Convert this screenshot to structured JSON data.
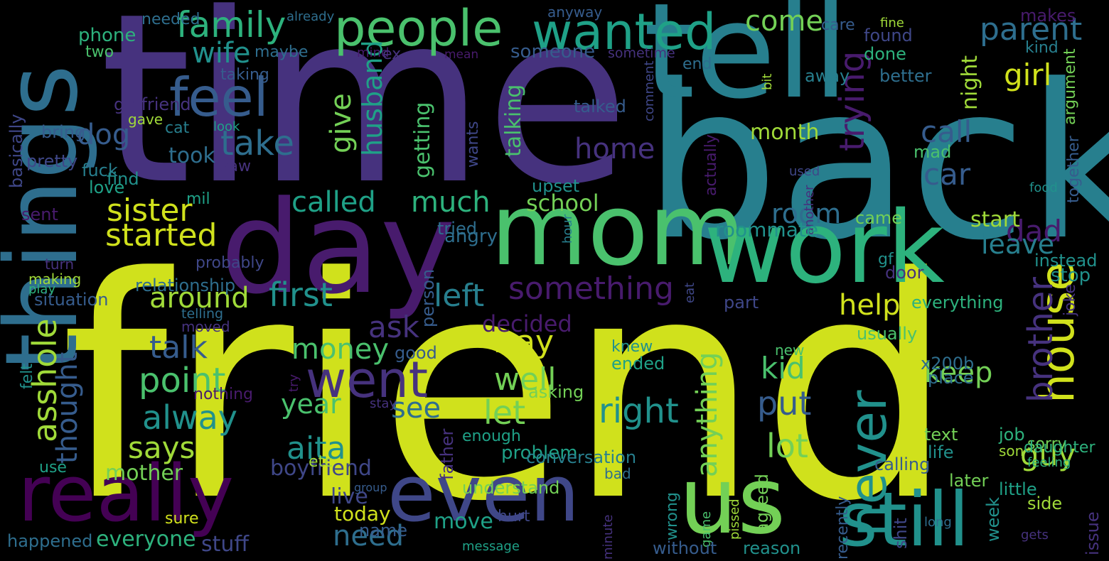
{
  "background": "#000000",
  "palette": {
    "p1": "#440154",
    "p2": "#481b6d",
    "p3": "#46327e",
    "p4": "#3f4788",
    "p5": "#365c8d",
    "p6": "#2e6e8e",
    "p7": "#277f8e",
    "p8": "#21918c",
    "p9": "#1fa187",
    "p10": "#2db27d",
    "p11": "#4ac16d",
    "p12": "#73d056",
    "p13": "#a0da39",
    "p14": "#d0e11c"
  },
  "words": [
    {
      "text": "friend",
      "color": "p14"
    },
    {
      "text": "time",
      "color": "p3"
    },
    {
      "text": "back",
      "color": "p7"
    },
    {
      "text": "tell",
      "color": "p7"
    },
    {
      "text": "day",
      "color": "p2"
    },
    {
      "text": "mom",
      "color": "p11"
    },
    {
      "text": "work",
      "color": "p10"
    },
    {
      "text": "things",
      "color": "p6"
    },
    {
      "text": "people",
      "color": "p11"
    },
    {
      "text": "wanted",
      "color": "p9"
    },
    {
      "text": "really",
      "color": "p1"
    },
    {
      "text": "even",
      "color": "p4"
    },
    {
      "text": "us",
      "color": "p12"
    },
    {
      "text": "still",
      "color": "p8"
    },
    {
      "text": "feel",
      "color": "p5"
    },
    {
      "text": "never",
      "color": "p8"
    },
    {
      "text": "house",
      "color": "p14"
    },
    {
      "text": "went",
      "color": "p3"
    },
    {
      "text": "family",
      "color": "p10"
    },
    {
      "text": "wife",
      "color": "p8"
    },
    {
      "text": "dog",
      "color": "p5"
    },
    {
      "text": "take",
      "color": "p6"
    },
    {
      "text": "sister",
      "color": "p14"
    },
    {
      "text": "started",
      "color": "p14"
    },
    {
      "text": "called",
      "color": "p9"
    },
    {
      "text": "much",
      "color": "p10"
    },
    {
      "text": "school",
      "color": "p12"
    },
    {
      "text": "room",
      "color": "p6"
    },
    {
      "text": "dad",
      "color": "p2"
    },
    {
      "text": "leave",
      "color": "p7"
    },
    {
      "text": "parent",
      "color": "p6"
    },
    {
      "text": "girl",
      "color": "p14"
    },
    {
      "text": "call",
      "color": "p5"
    },
    {
      "text": "car",
      "color": "p5"
    },
    {
      "text": "come",
      "color": "p12"
    },
    {
      "text": "home",
      "color": "p3"
    },
    {
      "text": "husband",
      "color": "p9"
    },
    {
      "text": "give",
      "color": "p12"
    },
    {
      "text": "trying",
      "color": "p2"
    },
    {
      "text": "around",
      "color": "p13"
    },
    {
      "text": "first",
      "color": "p8"
    },
    {
      "text": "something",
      "color": "p2"
    },
    {
      "text": "left",
      "color": "p7"
    },
    {
      "text": "help",
      "color": "p14"
    },
    {
      "text": "ask",
      "color": "p3"
    },
    {
      "text": "way",
      "color": "p14"
    },
    {
      "text": "talk",
      "color": "p5"
    },
    {
      "text": "point",
      "color": "p11"
    },
    {
      "text": "money",
      "color": "p11"
    },
    {
      "text": "asshole",
      "color": "p13"
    },
    {
      "text": "thought",
      "color": "p5"
    },
    {
      "text": "alway",
      "color": "p8"
    },
    {
      "text": "says",
      "color": "p13"
    },
    {
      "text": "anything",
      "color": "p12"
    },
    {
      "text": "kid",
      "color": "p11"
    },
    {
      "text": "well",
      "color": "p12"
    },
    {
      "text": "keep",
      "color": "p12"
    },
    {
      "text": "right",
      "color": "p8"
    },
    {
      "text": "put",
      "color": "p5"
    },
    {
      "text": "lot",
      "color": "p12"
    },
    {
      "text": "let",
      "color": "p12"
    },
    {
      "text": "see",
      "color": "p6"
    },
    {
      "text": "year",
      "color": "p11"
    },
    {
      "text": "aita",
      "color": "p8"
    },
    {
      "text": "brother",
      "color": "p3"
    },
    {
      "text": "guy",
      "color": "p13"
    },
    {
      "text": "need",
      "color": "p6"
    },
    {
      "text": "everyone",
      "color": "p10"
    },
    {
      "text": "stuff",
      "color": "p4"
    },
    {
      "text": "boyfriend",
      "color": "p4"
    },
    {
      "text": "mother",
      "color": "p12"
    },
    {
      "text": "live",
      "color": "p4"
    },
    {
      "text": "today",
      "color": "p14"
    },
    {
      "text": "move",
      "color": "p9"
    },
    {
      "text": "decided",
      "color": "p2"
    },
    {
      "text": "month",
      "color": "p13"
    },
    {
      "text": "took",
      "color": "p6"
    },
    {
      "text": "talking",
      "color": "p11"
    },
    {
      "text": "getting",
      "color": "p11"
    },
    {
      "text": "night",
      "color": "p13"
    },
    {
      "text": "someone",
      "color": "p5"
    },
    {
      "text": "phone",
      "color": "p10"
    },
    {
      "text": "needed",
      "color": "p6"
    },
    {
      "text": "two",
      "color": "p11"
    },
    {
      "text": "maybe",
      "color": "p6"
    },
    {
      "text": "anyway",
      "color": "p5"
    },
    {
      "text": "care",
      "color": "p5"
    },
    {
      "text": "fine",
      "color": "p13"
    },
    {
      "text": "makes",
      "color": "p2"
    },
    {
      "text": "found",
      "color": "p4"
    },
    {
      "text": "done",
      "color": "p10"
    },
    {
      "text": "kind",
      "color": "p7"
    },
    {
      "text": "already",
      "color": "p6"
    },
    {
      "text": "mind",
      "color": "p2"
    },
    {
      "text": "ex",
      "color": "p3"
    },
    {
      "text": "mean",
      "color": "p2"
    },
    {
      "text": "sometime",
      "color": "p3"
    },
    {
      "text": "taking",
      "color": "p5"
    },
    {
      "text": "end",
      "color": "p6"
    },
    {
      "text": "away",
      "color": "p7"
    },
    {
      "text": "better",
      "color": "p6"
    },
    {
      "text": "bit",
      "color": "p13"
    },
    {
      "text": "comment",
      "color": "p4"
    },
    {
      "text": "argument",
      "color": "p12"
    },
    {
      "text": "basically",
      "color": "p4"
    },
    {
      "text": "girlfriend",
      "color": "p3"
    },
    {
      "text": "gave",
      "color": "p13"
    },
    {
      "text": "bring",
      "color": "p5"
    },
    {
      "text": "cat",
      "color": "p7"
    },
    {
      "text": "look",
      "color": "p9"
    },
    {
      "text": "talked",
      "color": "p5"
    },
    {
      "text": "mad",
      "color": "p11"
    },
    {
      "text": "together",
      "color": "p5"
    },
    {
      "text": "pretty",
      "color": "p4"
    },
    {
      "text": "find",
      "color": "p8"
    },
    {
      "text": "saw",
      "color": "p3"
    },
    {
      "text": "wants",
      "color": "p4"
    },
    {
      "text": "actually",
      "color": "p2"
    },
    {
      "text": "used",
      "color": "p4"
    },
    {
      "text": "fuck",
      "color": "p7"
    },
    {
      "text": "love",
      "color": "p9"
    },
    {
      "text": "upset",
      "color": "p8"
    },
    {
      "text": "food",
      "color": "p8"
    },
    {
      "text": "mil",
      "color": "p9"
    },
    {
      "text": "another",
      "color": "p3"
    },
    {
      "text": "sent",
      "color": "p2"
    },
    {
      "text": "roommate",
      "color": "p8"
    },
    {
      "text": "came",
      "color": "p12"
    },
    {
      "text": "start",
      "color": "p13"
    },
    {
      "text": "tried",
      "color": "p6"
    },
    {
      "text": "angry",
      "color": "p6"
    },
    {
      "text": "hour",
      "color": "p7"
    },
    {
      "text": "turn",
      "color": "p3"
    },
    {
      "text": "probably",
      "color": "p4"
    },
    {
      "text": "gf",
      "color": "p8"
    },
    {
      "text": "instead",
      "color": "p8"
    },
    {
      "text": "making",
      "color": "p13"
    },
    {
      "text": "play",
      "color": "p10"
    },
    {
      "text": "eat",
      "color": "p4"
    },
    {
      "text": "door",
      "color": "p3"
    },
    {
      "text": "stop",
      "color": "p8"
    },
    {
      "text": "joke",
      "color": "p3"
    },
    {
      "text": "relationship",
      "color": "p6"
    },
    {
      "text": "situation",
      "color": "p5"
    },
    {
      "text": "person",
      "color": "p5"
    },
    {
      "text": "part",
      "color": "p4"
    },
    {
      "text": "everything",
      "color": "p10"
    },
    {
      "text": "telling",
      "color": "p6"
    },
    {
      "text": "moved",
      "color": "p3"
    },
    {
      "text": "usually",
      "color": "p11"
    },
    {
      "text": "good",
      "color": "p5"
    },
    {
      "text": "knew",
      "color": "p8"
    },
    {
      "text": "new",
      "color": "p11"
    },
    {
      "text": "x200b",
      "color": "p6"
    },
    {
      "text": "place",
      "color": "p6"
    },
    {
      "text": "ended",
      "color": "p9"
    },
    {
      "text": "asking",
      "color": "p12"
    },
    {
      "text": "felt",
      "color": "p8"
    },
    {
      "text": "nothing",
      "color": "p2"
    },
    {
      "text": "try",
      "color": "p2"
    },
    {
      "text": "stay",
      "color": "p3"
    },
    {
      "text": "father",
      "color": "p3"
    },
    {
      "text": "text",
      "color": "p12"
    },
    {
      "text": "job",
      "color": "p10"
    },
    {
      "text": "son",
      "color": "p13"
    },
    {
      "text": "life",
      "color": "p8"
    },
    {
      "text": "sorry",
      "color": "p12"
    },
    {
      "text": "etc",
      "color": "p13"
    },
    {
      "text": "understand",
      "color": "p12"
    },
    {
      "text": "later",
      "color": "p12"
    },
    {
      "text": "feeling",
      "color": "p10"
    },
    {
      "text": "daughter",
      "color": "p10"
    },
    {
      "text": "use",
      "color": "p9"
    },
    {
      "text": "problem",
      "color": "p9"
    },
    {
      "text": "conversation",
      "color": "p7"
    },
    {
      "text": "calling",
      "color": "p5"
    },
    {
      "text": "enough",
      "color": "p9"
    },
    {
      "text": "bad",
      "color": "p6"
    },
    {
      "text": "pissed",
      "color": "p13"
    },
    {
      "text": "little",
      "color": "p9"
    },
    {
      "text": "name",
      "color": "p5"
    },
    {
      "text": "issue",
      "color": "p3"
    },
    {
      "text": "week",
      "color": "p8"
    },
    {
      "text": "shit",
      "color": "p4"
    },
    {
      "text": "group",
      "color": "p5"
    },
    {
      "text": "sure",
      "color": "p14"
    },
    {
      "text": "wrong",
      "color": "p8"
    },
    {
      "text": "game",
      "color": "p11"
    },
    {
      "text": "agreed",
      "color": "p12"
    },
    {
      "text": "recently",
      "color": "p5"
    },
    {
      "text": "side",
      "color": "p13"
    },
    {
      "text": "hurt",
      "color": "p4"
    },
    {
      "text": "long",
      "color": "p6"
    },
    {
      "text": "minute",
      "color": "p3"
    },
    {
      "text": "happened",
      "color": "p6"
    },
    {
      "text": "message",
      "color": "p9"
    },
    {
      "text": "without",
      "color": "p5"
    },
    {
      "text": "reason",
      "color": "p8"
    },
    {
      "text": "gets",
      "color": "p3"
    }
  ]
}
